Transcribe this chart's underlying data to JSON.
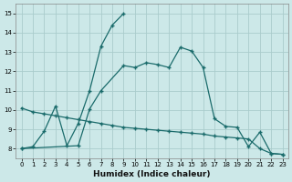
{
  "xlabel": "Humidex (Indice chaleur)",
  "bg_color": "#cce8e8",
  "grid_color": "#aacccc",
  "line_color": "#1a6b6b",
  "curveA_x": [
    0,
    1,
    2,
    3,
    4,
    5,
    6,
    7,
    8,
    9
  ],
  "curveA_y": [
    8.0,
    8.1,
    8.9,
    10.2,
    8.15,
    9.3,
    11.0,
    13.3,
    14.4,
    15.0
  ],
  "curveB_x": [
    0,
    5,
    6,
    7,
    9,
    10,
    11,
    12,
    13,
    14,
    15,
    16,
    17,
    18,
    19,
    20,
    21,
    22,
    23
  ],
  "curveB_y": [
    8.0,
    8.15,
    10.05,
    11.0,
    12.3,
    12.2,
    12.45,
    12.35,
    12.2,
    13.25,
    13.05,
    12.2,
    9.55,
    9.15,
    9.1,
    8.1,
    8.85,
    7.75,
    7.7
  ],
  "curveC_x": [
    0,
    1,
    2,
    3,
    4,
    5,
    6,
    7,
    8,
    9,
    10,
    11,
    12,
    13,
    14,
    15,
    16,
    17,
    18,
    19,
    20,
    21,
    22,
    23
  ],
  "curveC_y": [
    10.1,
    9.9,
    9.8,
    9.7,
    9.6,
    9.5,
    9.4,
    9.3,
    9.2,
    9.1,
    9.05,
    9.0,
    8.95,
    8.9,
    8.85,
    8.8,
    8.75,
    8.65,
    8.6,
    8.55,
    8.5,
    8.0,
    7.75,
    7.7
  ],
  "xlim": [
    -0.5,
    23.5
  ],
  "ylim": [
    7.5,
    15.5
  ],
  "yticks": [
    8,
    9,
    10,
    11,
    12,
    13,
    14,
    15
  ],
  "xticks": [
    0,
    1,
    2,
    3,
    4,
    5,
    6,
    7,
    8,
    9,
    10,
    11,
    12,
    13,
    14,
    15,
    16,
    17,
    18,
    19,
    20,
    21,
    22,
    23
  ]
}
